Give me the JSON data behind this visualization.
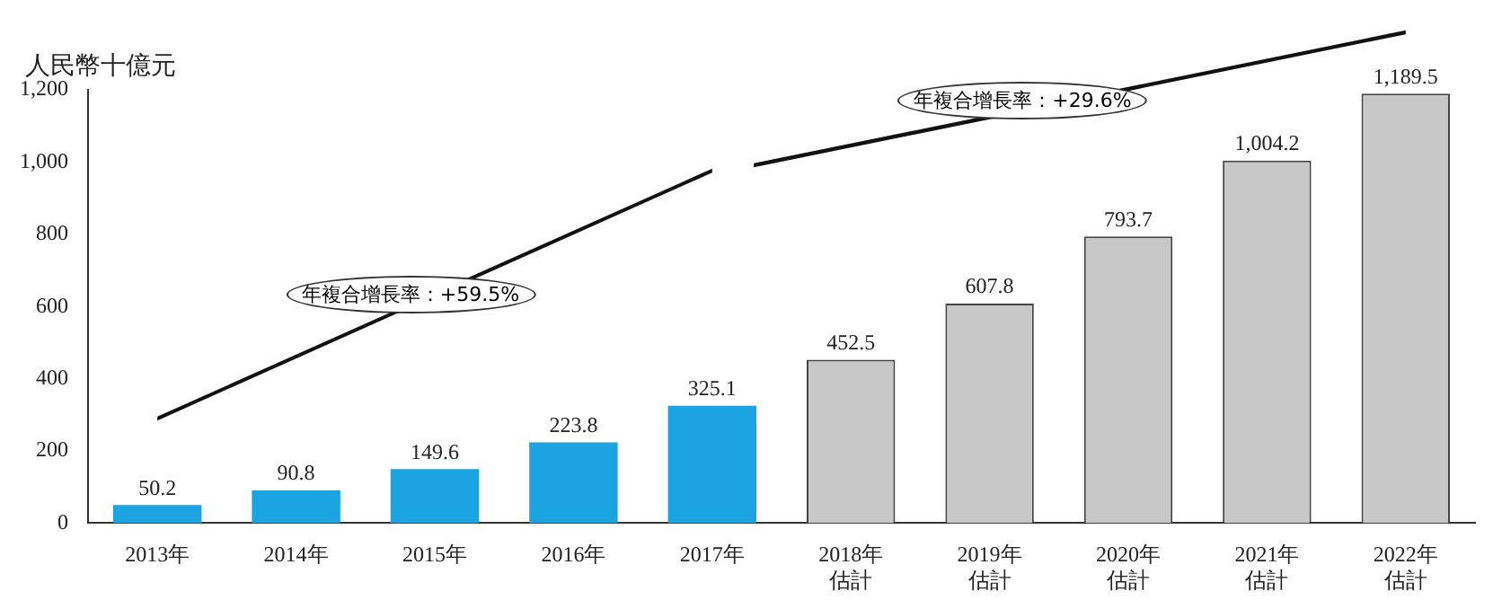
{
  "chart_data": {
    "type": "bar",
    "ylabel": "人民幣十億元",
    "categories": [
      "2013年",
      "2014年",
      "2015年",
      "2016年",
      "2017年",
      "2018年估計",
      "2019年估計",
      "2020年估計",
      "2021年估計",
      "2022年估計"
    ],
    "values": [
      50.2,
      90.8,
      149.6,
      223.8,
      325.1,
      452.5,
      607.8,
      793.7,
      1004.2,
      1189.5
    ],
    "colors": [
      "#1ba3e2",
      "#1ba3e2",
      "#1ba3e2",
      "#1ba3e2",
      "#1ba3e2",
      "#c8c8c8",
      "#c8c8c8",
      "#c8c8c8",
      "#c8c8c8",
      "#c8c8c8"
    ],
    "value_labels": [
      "50.2",
      "90.8",
      "149.6",
      "223.8",
      "325.1",
      "452.5",
      "607.8",
      "793.7",
      "1,004.2",
      "1,189.5"
    ],
    "ylim": [
      0,
      1200
    ],
    "yticks": [
      0,
      200,
      400,
      600,
      800,
      {
        "value": 1000,
        "label": "1,000"
      },
      {
        "value": 1200,
        "label": "1,200"
      }
    ],
    "grid": false,
    "legend": false,
    "annotations": [
      "年複合增長率：+59.5%",
      "年複合增長率：+29.6%"
    ]
  }
}
